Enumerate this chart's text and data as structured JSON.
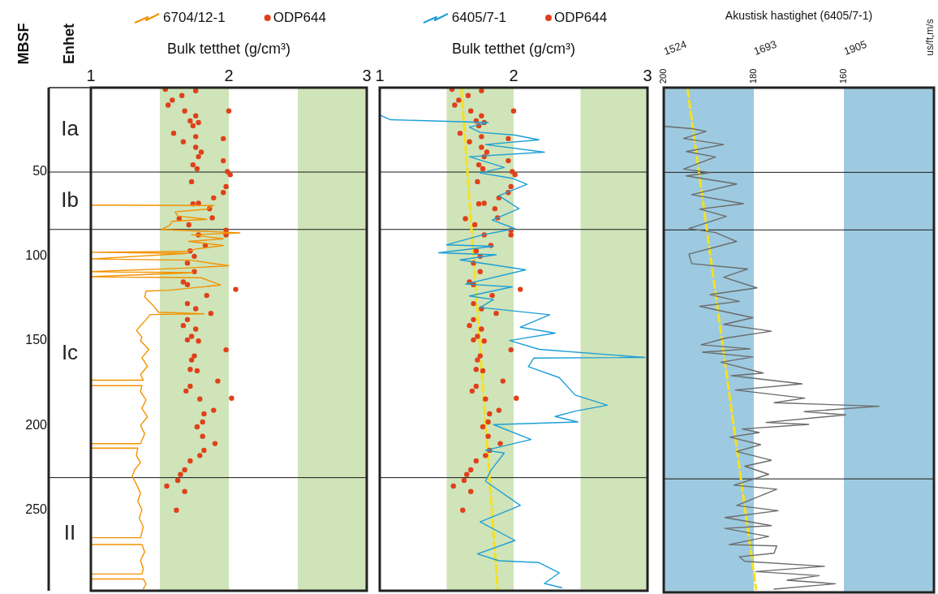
{
  "chart_data": [
    {
      "type": "line",
      "title": "Enhet",
      "ylabel": "MBSF",
      "xlabel": "Bulk tetthet (g/cm³)",
      "xlim": [
        1,
        3
      ],
      "xticks": [
        1,
        2,
        3
      ],
      "ylim": [
        298,
        0
      ],
      "yticks": [
        50,
        100,
        150,
        200,
        250
      ],
      "legend": "top",
      "annotations": [
        "Ia",
        "Ib",
        "Ic",
        "II"
      ],
      "bands": [
        {
          "axis": "x",
          "from": 1.5,
          "to": 2,
          "color": "#cfe4b9"
        },
        {
          "axis": "x",
          "from": 2.5,
          "to": 3,
          "color": "#cfe4b9"
        }
      ],
      "ref_lines": [
        {
          "axis": "y",
          "value": 50
        },
        {
          "axis": "y",
          "value": 84
        },
        {
          "axis": "y",
          "value": 231
        }
      ],
      "series": [
        {
          "name": "6704/12-1",
          "type": "line",
          "color": "#f39200",
          "x": [
            1.0,
            1.89,
            1.84,
            1.61,
            1.63,
            1.84,
            1.59,
            1.57,
            1.51,
            2.08,
            1.73,
            1.96,
            1.71,
            1.96,
            1.76,
            1.7,
            1.0,
            1.7,
            1.0,
            1.72,
            2.0,
            1.65,
            1.0,
            1.74,
            1.0,
            1.8,
            1.94,
            1.57,
            1.4,
            1.39,
            1.45,
            1.49,
            1.82,
            1.43,
            1.4,
            1.33,
            1.37,
            1.36,
            1.42,
            1.37,
            1.41,
            1.36,
            1.38,
            1.0,
            1.0,
            1.37,
            1.36,
            1.4,
            1.37,
            1.41,
            1.36,
            1.39,
            1.36,
            1.0,
            1.0,
            1.34,
            1.33,
            1.36,
            1.32,
            1.3,
            1.33,
            1.36,
            1.34,
            1.37,
            1.35,
            1.38,
            1.36,
            1.0,
            1.0,
            1.37,
            1.39,
            1.36,
            1.38,
            1.37,
            1.0,
            1.0,
            1.38,
            1.4,
            1.38
          ],
          "values": [
            69.6,
            69.8,
            72,
            73.6,
            76,
            78,
            79.2,
            81.6,
            84,
            86,
            87.2,
            89.5,
            91.1,
            93.5,
            95.6,
            97,
            97.5,
            98.2,
            101.5,
            102.2,
            105.5,
            107,
            109,
            109.6,
            112,
            112.6,
            116.9,
            120,
            120.5,
            124,
            128.9,
            133,
            134,
            134.4,
            137.4,
            143.8,
            147.8,
            150,
            155,
            160,
            165,
            170,
            173.3,
            173.3,
            176.5,
            176.5,
            180,
            185,
            190,
            195,
            200,
            205,
            210.9,
            210.9,
            213.5,
            213.5,
            218,
            222,
            226,
            230,
            235,
            240,
            245,
            250,
            255,
            260,
            266.6,
            266.6,
            270.6,
            270.6,
            275,
            280,
            285,
            288.1,
            288.1,
            291,
            291,
            294,
            297
          ]
        },
        {
          "name": "ODP644",
          "type": "scatter",
          "marker": "circle",
          "color": "#e0401a",
          "x": [
            1.54,
            1.76,
            1.66,
            1.59,
            1.56,
            1.68,
            2.0,
            1.76,
            1.72,
            1.78,
            1.74,
            1.6,
            1.76,
            1.96,
            1.67,
            1.76,
            1.8,
            1.78,
            1.96,
            1.74,
            1.77,
            1.99,
            2.01,
            1.73,
            1.98,
            1.96,
            1.89,
            1.78,
            1.74,
            1.86,
            1.88,
            1.64,
            1.71,
            1.98,
            1.98,
            1.78,
            1.83,
            1.72,
            1.75,
            1.7,
            1.75,
            1.67,
            1.7,
            2.05,
            1.84,
            1.7,
            1.76,
            1.87,
            1.7,
            1.67,
            1.76,
            1.73,
            1.7,
            1.78,
            1.98,
            1.75,
            1.73,
            1.72,
            1.77,
            1.92,
            1.72,
            1.69,
            2.02,
            1.79,
            1.89,
            1.82,
            1.81,
            1.77,
            1.81,
            1.9,
            1.82,
            1.79,
            1.72,
            1.68,
            1.65,
            1.63,
            1.55,
            1.68,
            1.62
          ],
          "values": [
            1,
            1.8,
            4.7,
            7.4,
            10.3,
            13.8,
            13.8,
            16.7,
            19.7,
            20.7,
            22.6,
            27,
            29,
            30.2,
            32.1,
            35.3,
            38.2,
            40.9,
            43.3,
            45.7,
            48.1,
            49.7,
            51.6,
            55.7,
            58.6,
            62.1,
            65.3,
            68.5,
            68.8,
            71.7,
            77.1,
            77.6,
            81.2,
            84.5,
            87.2,
            87.2,
            93.5,
            96.7,
            99.9,
            103.9,
            109,
            115.1,
            116.7,
            119.5,
            123.1,
            127.9,
            131,
            133.7,
            137.4,
            140.9,
            143,
            147.3,
            149.4,
            150.1,
            155.3,
            158.9,
            161.3,
            166.9,
            167.7,
            173.8,
            176.9,
            179.7,
            184,
            184.4,
            191.1,
            193.2,
            198,
            200.9,
            206.5,
            210.8,
            214.8,
            217.9,
            221.1,
            226.4,
            229.1,
            232.6,
            236,
            239.2,
            250.3
          ]
        }
      ]
    },
    {
      "type": "line",
      "xlabel": "Bulk tetthet (g/cm³)",
      "xlim": [
        1,
        3
      ],
      "xticks": [
        1,
        2,
        3
      ],
      "ylim": [
        298,
        0
      ],
      "tick_labels": "x",
      "legend": "top",
      "bands": [
        {
          "axis": "x",
          "from": 1.5,
          "to": 2,
          "color": "#cfe4b9"
        },
        {
          "axis": "x",
          "from": 2.5,
          "to": 3,
          "color": "#cfe4b9"
        }
      ],
      "ref_lines": [
        {
          "axis": "y",
          "value": 50
        },
        {
          "axis": "y",
          "value": 84
        },
        {
          "axis": "y",
          "value": 231
        }
      ],
      "series": [
        {
          "name": "6405/7-1",
          "type": "line",
          "color": "#1e9fd6",
          "x": [
            1.0,
            1.08,
            1.81,
            1.67,
            1.75,
            2.01,
            2.19,
            1.79,
            2.23,
            1.67,
            1.93,
            1.75,
            1.99,
            2.1,
            1.89,
            2.04,
            1.84,
            2.01,
            1.77,
            1.5,
            1.85,
            1.44,
            1.87,
            1.6,
            2.09,
            1.64,
            1.99,
            1.67,
            1.85,
            1.75,
            2.27,
            2.05,
            2.31,
            1.97,
            2.19,
            2.98,
            2.15,
            2.11,
            2.34,
            2.46,
            2.7,
            2.46,
            2.31,
            2.48,
            1.85,
            2.13,
            1.79,
            1.93,
            1.83,
            1.79,
            2.05,
            1.75,
            2.01,
            1.73,
            1.89,
            2.19,
            2.34,
            2.23,
            2.36
          ],
          "values": [
            16.2,
            19,
            20.7,
            23.4,
            26.5,
            28.1,
            30.9,
            33.7,
            38.2,
            40.9,
            47.3,
            50.5,
            53.7,
            57.3,
            64,
            71.7,
            78.4,
            83.5,
            87.2,
            93.1,
            94,
            97.8,
            99,
            102,
            107.9,
            116.4,
            118,
            123.4,
            125.5,
            130.2,
            134.5,
            141.9,
            145.4,
            149.8,
            155,
            159.8,
            160.2,
            165.3,
            171.7,
            182.1,
            188.1,
            191.6,
            194.8,
            198,
            199.6,
            208.4,
            214.8,
            216.4,
            226.7,
            233.1,
            247.5,
            257.2,
            268.2,
            276.2,
            280.2,
            281.3,
            287.4,
            293.7,
            296.2
          ]
        },
        {
          "name": "ODP644",
          "type": "scatter",
          "marker": "circle",
          "color": "#e0401a",
          "x": [
            1.54,
            1.76,
            1.66,
            1.59,
            1.56,
            1.68,
            2.0,
            1.76,
            1.72,
            1.78,
            1.74,
            1.6,
            1.76,
            1.96,
            1.67,
            1.76,
            1.8,
            1.78,
            1.96,
            1.74,
            1.77,
            1.99,
            2.01,
            1.73,
            1.98,
            1.96,
            1.89,
            1.78,
            1.74,
            1.86,
            1.88,
            1.64,
            1.71,
            1.98,
            1.98,
            1.78,
            1.83,
            1.72,
            1.75,
            1.7,
            1.75,
            1.67,
            1.7,
            2.05,
            1.84,
            1.7,
            1.76,
            1.87,
            1.7,
            1.67,
            1.76,
            1.73,
            1.7,
            1.78,
            1.98,
            1.75,
            1.73,
            1.72,
            1.77,
            1.92,
            1.72,
            1.69,
            2.02,
            1.79,
            1.89,
            1.82,
            1.81,
            1.77,
            1.81,
            1.9,
            1.82,
            1.79,
            1.72,
            1.68,
            1.65,
            1.63,
            1.55,
            1.68,
            1.62
          ],
          "values": [
            1,
            1.8,
            4.7,
            7.4,
            10.3,
            13.8,
            13.8,
            16.7,
            19.7,
            20.7,
            22.6,
            27,
            29,
            30.2,
            32.1,
            35.3,
            38.2,
            40.9,
            43.3,
            45.7,
            48.1,
            49.7,
            51.6,
            55.7,
            58.6,
            62.1,
            65.3,
            68.5,
            68.8,
            71.7,
            77.1,
            77.6,
            81.2,
            84.5,
            87.2,
            87.2,
            93.5,
            96.7,
            99.9,
            103.9,
            109,
            115.1,
            116.7,
            119.5,
            123.1,
            127.9,
            131,
            133.7,
            137.4,
            140.9,
            143,
            147.3,
            149.4,
            150.1,
            155.3,
            158.9,
            161.3,
            166.9,
            167.7,
            173.8,
            176.9,
            179.7,
            184,
            184.4,
            191.1,
            193.2,
            198,
            200.9,
            206.5,
            210.8,
            214.8,
            217.9,
            221.1,
            226.4,
            229.1,
            232.6,
            236,
            239.2,
            250.3
          ]
        },
        {
          "type": "line",
          "line_style": "dashed",
          "color": "#f5e11e",
          "x": [
            1.61,
            1.88
          ],
          "values": [
            1,
            296.9
          ]
        }
      ]
    },
    {
      "type": "line",
      "title": "Akustisk hastighet (6405/7-1)",
      "xlim": [
        200,
        140
      ],
      "xticks": [
        200,
        180,
        160
      ],
      "ylim": [
        298,
        0
      ],
      "tick_labels": "x",
      "bands": [
        {
          "axis": "x",
          "from": 200,
          "to": 180,
          "color": "#9dcae0"
        },
        {
          "axis": "x",
          "from": 160,
          "to": 140,
          "color": "#9dcae0"
        }
      ],
      "ref_lines": [
        {
          "axis": "y",
          "value": 50
        },
        {
          "axis": "y",
          "value": 84
        },
        {
          "axis": "y",
          "value": 231
        }
      ],
      "annotations": [
        "1524",
        "1693",
        "1905",
        "us/ft,m/s"
      ],
      "series": [
        {
          "type": "line",
          "color": "#6b6b6b",
          "x": [
            199.7,
            193.8,
            190.6,
            195.6,
            186.7,
            195,
            188.5,
            195.6,
            189.7,
            195,
            183.8,
            193.8,
            182.3,
            192,
            186.1,
            194.4,
            188.5,
            183.8,
            194.4,
            193.8,
            181.4,
            186.7,
            179.3,
            189.7,
            183.2,
            192,
            180.2,
            186.7,
            176.1,
            186.1,
            191.7,
            180.8,
            191.4,
            180.2,
            187.3,
            177.9,
            185,
            169.3,
            184.1,
            168.7,
            175.5,
            152.2,
            168.8,
            159.6,
            177.3,
            167.8,
            182.6,
            178.8,
            185.3,
            178.5,
            183.8,
            176.1,
            182,
            176.7,
            184.4,
            174.9,
            183.8,
            174.6,
            186.4,
            176.1,
            186.4,
            176.7,
            185.5,
            174.9,
            175.5,
            183.2,
            182,
            164.3,
            179.6,
            165.5,
            172.6,
            161.9,
            175.5
          ],
          "values": [
            22.9,
            24.2,
            25.8,
            30,
            33.6,
            37.7,
            40.9,
            48.1,
            50.2,
            52.1,
            56.9,
            63.2,
            68.5,
            71.7,
            76,
            83.2,
            85.6,
            90.8,
            98.3,
            103.9,
            107.1,
            111.9,
            118.2,
            122.2,
            126.2,
            129.1,
            135.8,
            139.8,
            143.8,
            147.8,
            151.8,
            154.2,
            156.2,
            159,
            162.1,
            168.5,
            170.1,
            174.9,
            178.5,
            183.3,
            186,
            188.1,
            191.3,
            193.2,
            197.7,
            198.8,
            201.5,
            203.6,
            206.3,
            210.8,
            214.8,
            220,
            223.5,
            228.3,
            234.7,
            237.1,
            246.7,
            249.8,
            253.8,
            258.6,
            260.2,
            265,
            269.8,
            270.6,
            274.9,
            277,
            279.7,
            282.6,
            285.7,
            288.1,
            290.8,
            292.9,
            296.1
          ]
        },
        {
          "type": "line",
          "line_style": "dashed",
          "color": "#f5e11e",
          "x": [
            194.7,
            179.5
          ],
          "values": [
            1,
            296.1
          ]
        }
      ]
    }
  ]
}
